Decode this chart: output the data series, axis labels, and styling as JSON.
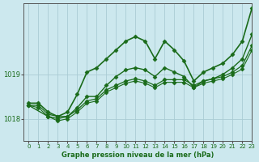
{
  "title": "Graphe pression niveau de la mer (hPa)",
  "bg_color": "#cce8ee",
  "grid_color": "#aaccd4",
  "line_color": "#1a6b1a",
  "xlim": [
    -0.5,
    23
  ],
  "ylim": [
    1017.5,
    1020.6
  ],
  "yticks": [
    1018,
    1019
  ],
  "xticks": [
    0,
    1,
    2,
    3,
    4,
    5,
    6,
    7,
    8,
    9,
    10,
    11,
    12,
    13,
    14,
    15,
    16,
    17,
    18,
    19,
    20,
    21,
    22,
    23
  ],
  "series": [
    {
      "x": [
        0,
        1,
        2,
        3,
        4,
        5,
        6,
        7,
        8,
        9,
        10,
        11,
        12,
        13,
        14,
        15,
        16,
        17,
        18,
        19,
        20,
        21,
        22,
        23
      ],
      "y": [
        1018.35,
        1018.35,
        1018.15,
        1018.05,
        1018.15,
        1018.55,
        1019.05,
        1019.15,
        1019.35,
        1019.55,
        1019.75,
        1019.85,
        1019.75,
        1019.35,
        1019.75,
        1019.55,
        1019.3,
        1018.85,
        1019.05,
        1019.15,
        1019.25,
        1019.45,
        1019.75,
        1020.5
      ],
      "marker": "D",
      "marker_size": 2.5,
      "linewidth": 1.2
    },
    {
      "x": [
        0,
        2,
        3,
        4,
        5,
        6,
        7,
        8,
        9,
        10,
        11,
        12,
        13,
        14,
        15,
        16,
        17,
        18,
        19,
        20,
        21,
        22,
        23
      ],
      "y": [
        1018.3,
        1018.05,
        1018.0,
        1018.05,
        1018.25,
        1018.5,
        1018.5,
        1018.75,
        1018.95,
        1019.1,
        1019.15,
        1019.1,
        1018.95,
        1019.15,
        1019.05,
        1018.95,
        1018.7,
        1018.85,
        1018.9,
        1019.0,
        1019.15,
        1019.35,
        1019.9
      ],
      "marker": "D",
      "marker_size": 2.5,
      "linewidth": 1.0
    },
    {
      "x": [
        0,
        1,
        2,
        3,
        4,
        5,
        6,
        7,
        8,
        9,
        10,
        11,
        12,
        13,
        14,
        15,
        16,
        17,
        18,
        19,
        20,
        21,
        22,
        23
      ],
      "y": [
        1018.3,
        1018.3,
        1018.1,
        1018.05,
        1018.05,
        1018.2,
        1018.4,
        1018.45,
        1018.65,
        1018.75,
        1018.85,
        1018.9,
        1018.85,
        1018.75,
        1018.88,
        1018.88,
        1018.88,
        1018.75,
        1018.85,
        1018.9,
        1018.95,
        1019.05,
        1019.2,
        1019.65
      ],
      "marker": "D",
      "marker_size": 2.5,
      "linewidth": 0.9
    },
    {
      "x": [
        0,
        1,
        2,
        3,
        4,
        5,
        6,
        7,
        8,
        9,
        10,
        11,
        12,
        13,
        14,
        15,
        16,
        17,
        18,
        19,
        20,
        21,
        22,
        23
      ],
      "y": [
        1018.3,
        1018.25,
        1018.05,
        1017.95,
        1018.0,
        1018.15,
        1018.35,
        1018.4,
        1018.6,
        1018.7,
        1018.8,
        1018.85,
        1018.8,
        1018.7,
        1018.82,
        1018.82,
        1018.82,
        1018.7,
        1018.8,
        1018.85,
        1018.9,
        1019.0,
        1019.12,
        1019.55
      ],
      "marker": "D",
      "marker_size": 2.5,
      "linewidth": 0.8
    }
  ]
}
